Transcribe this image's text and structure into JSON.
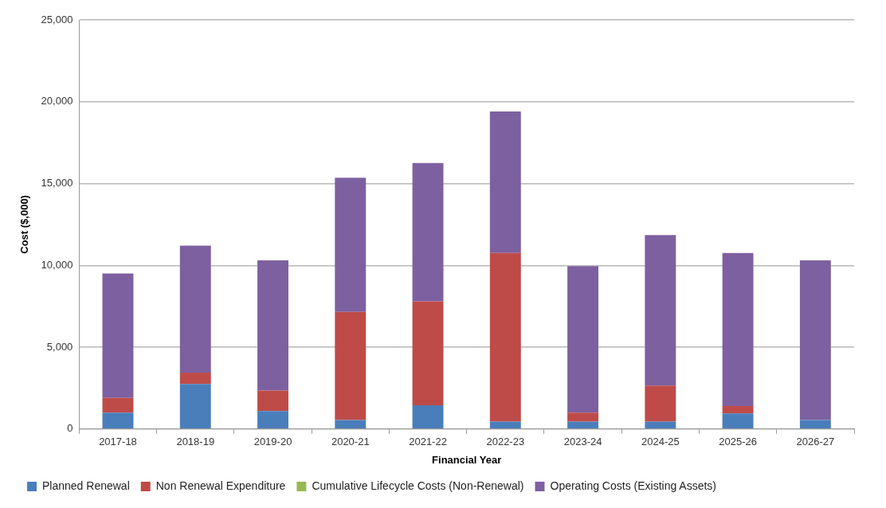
{
  "chart_data": {
    "type": "bar",
    "stacked": true,
    "xlabel": "Financial Year",
    "ylabel": "Cost ($,000)",
    "categories": [
      "2017-18",
      "2018-19",
      "2019-20",
      "2020-21",
      "2021-22",
      "2022-23",
      "2023-24",
      "2024-25",
      "2025-26",
      "2026-27"
    ],
    "series": [
      {
        "name": "Planned Renewal",
        "color": "#4a7ebb",
        "values": [
          1000,
          2750,
          1100,
          550,
          1450,
          450,
          450,
          450,
          950,
          550
        ]
      },
      {
        "name": "Non Renewal Expenditure",
        "color": "#be4b48",
        "values": [
          900,
          700,
          1250,
          6600,
          6350,
          10300,
          550,
          2200,
          450,
          0
        ]
      },
      {
        "name": "Cumulative Lifecycle Costs (Non-Renewal)",
        "color": "#98b954",
        "values": [
          0,
          0,
          0,
          0,
          0,
          0,
          0,
          0,
          0,
          0
        ]
      },
      {
        "name": "Operating Costs (Existing Assets)",
        "color": "#7d60a0",
        "values": [
          7600,
          7750,
          7950,
          8200,
          8450,
          8650,
          8950,
          9200,
          9350,
          9750
        ]
      }
    ],
    "ylim": [
      0,
      25000
    ],
    "yticks": [
      0,
      {
        "value": 5000,
        "label": "5,000"
      },
      {
        "value": 10000,
        "label": "10,000"
      },
      {
        "value": 15000,
        "label": "15,000"
      },
      {
        "value": 20000,
        "label": "20,000"
      },
      {
        "value": 25000,
        "label": "25,000"
      }
    ],
    "grid": "y",
    "legend": "bottom"
  }
}
